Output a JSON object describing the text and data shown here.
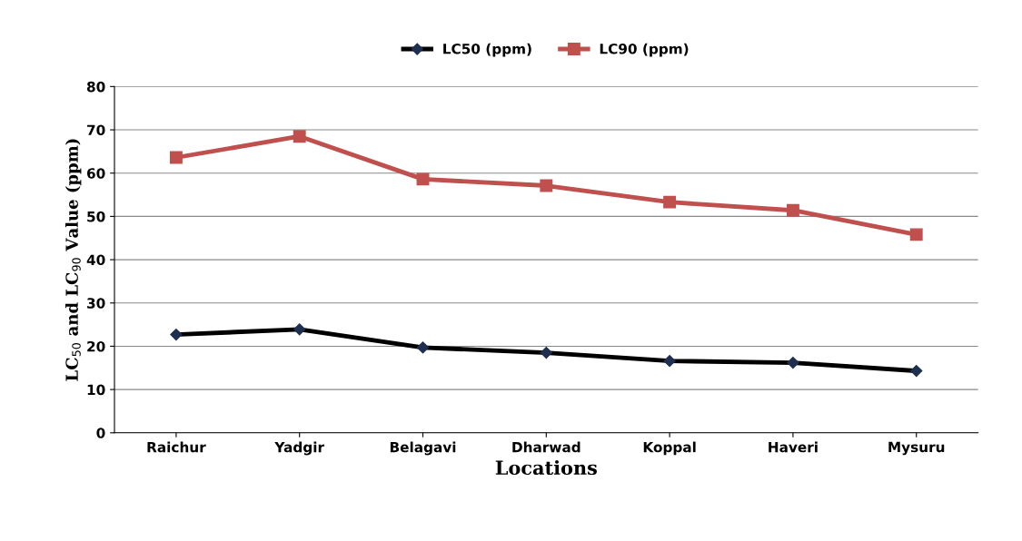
{
  "chart_data": {
    "type": "line",
    "xlabel": "Locations",
    "ylabel": "LC$_{50}$ and LC$_{90}$ Value (ppm)",
    "categories": [
      "Raichur",
      "Yadgir",
      "Belagavi",
      "Dharwad",
      "Koppal",
      "Haveri",
      "Mysuru"
    ],
    "series": [
      {
        "name": "LC50 (ppm)",
        "color": "#000000",
        "marker": "diamond",
        "values": [
          22.7,
          23.9,
          19.7,
          18.5,
          16.6,
          16.2,
          14.3
        ]
      },
      {
        "name": "LC90 (ppm)",
        "color": "#c0504d",
        "marker": "square",
        "values": [
          63.6,
          68.5,
          58.6,
          57.1,
          53.3,
          51.4,
          45.8
        ]
      }
    ],
    "ylim": [
      0,
      80
    ],
    "yticks": [
      0,
      10,
      20,
      30,
      40,
      50,
      60,
      70,
      80
    ],
    "grid": "y",
    "legend": "top",
    "line_style": "solid"
  }
}
